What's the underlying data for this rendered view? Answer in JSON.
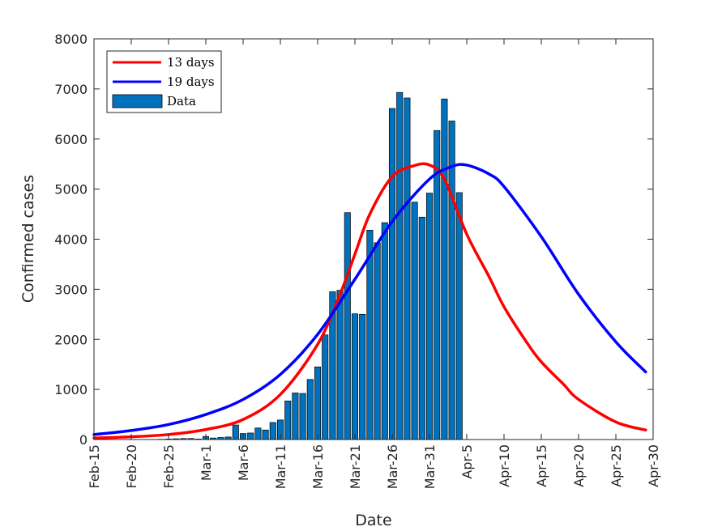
{
  "chart_data": {
    "type": "bar+line",
    "xlabel": "Date",
    "ylabel": "Confirmed cases",
    "ylim": [
      0,
      8000
    ],
    "xlim": [
      "2020-02-15",
      "2020-04-30"
    ],
    "x_ticks": [
      "Feb-15",
      "Feb-20",
      "Feb-25",
      "Mar-1",
      "Mar-6",
      "Mar-11",
      "Mar-16",
      "Mar-21",
      "Mar-26",
      "Mar-31",
      "Apr-5",
      "Apr-10",
      "Apr-15",
      "Apr-20",
      "Apr-25",
      "Apr-30"
    ],
    "y_ticks": [
      "0",
      "1000",
      "2000",
      "3000",
      "4000",
      "5000",
      "6000",
      "7000",
      "8000"
    ],
    "grid": false,
    "legend_position": "top-left",
    "legend": [
      "13 days",
      "19 days",
      "Data"
    ],
    "bars": {
      "name": "Data",
      "color": "#0072bd",
      "dates": [
        "2020-02-24",
        "2020-02-25",
        "2020-02-26",
        "2020-02-27",
        "2020-02-28",
        "2020-02-29",
        "2020-03-01",
        "2020-03-02",
        "2020-03-03",
        "2020-03-04",
        "2020-03-05",
        "2020-03-06",
        "2020-03-07",
        "2020-03-08",
        "2020-03-09",
        "2020-03-10",
        "2020-03-11",
        "2020-03-12",
        "2020-03-13",
        "2020-03-14",
        "2020-03-15",
        "2020-03-16",
        "2020-03-17",
        "2020-03-18",
        "2020-03-19",
        "2020-03-20",
        "2020-03-21",
        "2020-03-22",
        "2020-03-23",
        "2020-03-24",
        "2020-03-25",
        "2020-03-26",
        "2020-03-27",
        "2020-03-28",
        "2020-03-29",
        "2020-03-30",
        "2020-03-31",
        "2020-04-01",
        "2020-04-02",
        "2020-04-03",
        "2020-04-04"
      ],
      "values": [
        5,
        10,
        15,
        20,
        20,
        10,
        60,
        30,
        40,
        50,
        290,
        120,
        130,
        230,
        190,
        340,
        390,
        770,
        930,
        920,
        1200,
        1450,
        2090,
        2950,
        2980,
        4530,
        2510,
        2500,
        4180,
        3930,
        4330,
        6610,
        6930,
        6820,
        4740,
        4440,
        4920,
        6170,
        6800,
        6360,
        4930
      ]
    },
    "series": [
      {
        "name": "13 days",
        "color": "#ff0000",
        "x": [
          "2020-02-15",
          "2020-02-20",
          "2020-02-25",
          "2020-03-01",
          "2020-03-06",
          "2020-03-11",
          "2020-03-16",
          "2020-03-19",
          "2020-03-21",
          "2020-03-23",
          "2020-03-26",
          "2020-03-29",
          "2020-03-31",
          "2020-04-02",
          "2020-04-05",
          "2020-04-08",
          "2020-04-10",
          "2020-04-13",
          "2020-04-15",
          "2020-04-18",
          "2020-04-20",
          "2020-04-25",
          "2020-04-29"
        ],
        "values": [
          30,
          55,
          100,
          200,
          400,
          900,
          1900,
          2900,
          3700,
          4500,
          5250,
          5470,
          5480,
          5200,
          4100,
          3250,
          2650,
          1950,
          1550,
          1100,
          800,
          350,
          190
        ]
      },
      {
        "name": "19 days",
        "color": "#0000ff",
        "x": [
          "2020-02-15",
          "2020-02-20",
          "2020-02-25",
          "2020-03-01",
          "2020-03-06",
          "2020-03-11",
          "2020-03-16",
          "2020-03-21",
          "2020-03-26",
          "2020-03-31",
          "2020-04-03",
          "2020-04-05",
          "2020-04-08",
          "2020-04-10",
          "2020-04-15",
          "2020-04-20",
          "2020-04-25",
          "2020-04-29"
        ],
        "values": [
          100,
          180,
          300,
          500,
          800,
          1300,
          2100,
          3200,
          4350,
          5200,
          5450,
          5480,
          5300,
          5050,
          4050,
          2900,
          1950,
          1350
        ]
      }
    ]
  }
}
